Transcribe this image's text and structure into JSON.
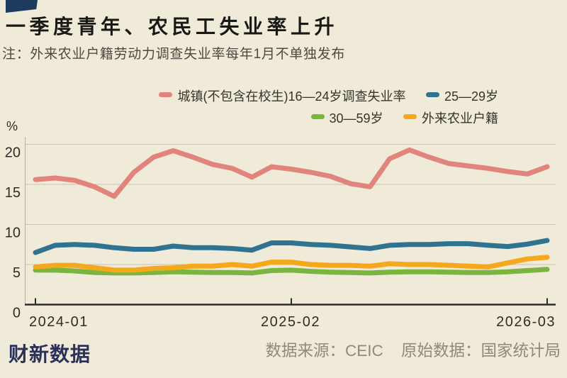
{
  "title": "一季度青年、农民工失业率上升",
  "note": "注：外来农业户籍劳动力调查失业率每年1月不单独发布",
  "unit_label": "%",
  "flag_color": "#1e3a5c",
  "colors": {
    "background": "#f0ead9",
    "gridline": "#c9c3b2",
    "axis": "#2e2c26",
    "yaxis_line": "#b3ae9f",
    "youth": "#e0847c",
    "age25_29": "#2f7390",
    "age30_59": "#7ab53f",
    "migrant": "#f6a81c"
  },
  "legend": [
    {
      "label": "城镇(不包含在校生)16—24岁调查失业率",
      "color": "#e0847c",
      "row": 1
    },
    {
      "label": "25—29岁",
      "color": "#2f7390",
      "row": 1
    },
    {
      "label": "30—59岁",
      "color": "#7ab53f",
      "row": 2
    },
    {
      "label": "外来农业户籍",
      "color": "#f6a81c",
      "row": 2
    }
  ],
  "footer": {
    "brand": "财新数据",
    "source_label": "数据来源：CEIC",
    "original_label": "原始数据：国家统计局"
  },
  "chart_data": {
    "type": "line",
    "x": [
      "2024-01",
      "2024-02",
      "2024-03",
      "2024-04",
      "2024-05",
      "2024-06",
      "2024-07",
      "2024-08",
      "2024-09",
      "2024-10",
      "2024-11",
      "2024-12",
      "2025-01",
      "2025-02",
      "2025-03",
      "2025-04",
      "2025-05",
      "2025-06",
      "2025-07",
      "2025-08",
      "2025-09",
      "2025-10",
      "2025-11",
      "2025-12",
      "2026-01",
      "2026-02",
      "2026-03"
    ],
    "x_tick_labels": [
      "2024-01",
      "2025-02",
      "2026-03"
    ],
    "x_tick_indices": [
      0,
      13,
      26
    ],
    "yticks": [
      0,
      5,
      10,
      15,
      20
    ],
    "ylim": [
      0,
      21
    ],
    "ylabel": "%",
    "grid": true,
    "legend_position": "top-right",
    "series": [
      {
        "name": "30—59岁",
        "color": "#7ab53f",
        "values": [
          4.3,
          4.3,
          4.2,
          4.0,
          3.95,
          3.95,
          4.0,
          4.1,
          4.05,
          4.0,
          4.0,
          3.95,
          4.25,
          4.3,
          4.15,
          4.05,
          4.0,
          3.95,
          4.05,
          4.1,
          4.1,
          4.05,
          4.0,
          4.0,
          4.1,
          4.25,
          4.4
        ]
      },
      {
        "name": "外来农业户籍",
        "color": "#f6a81c",
        "values": [
          4.7,
          4.9,
          4.9,
          4.6,
          4.3,
          4.3,
          4.5,
          4.6,
          4.8,
          4.8,
          5.0,
          4.8,
          5.3,
          5.3,
          5.0,
          4.9,
          4.9,
          4.8,
          5.1,
          5.0,
          5.0,
          4.9,
          4.8,
          4.7,
          5.2,
          5.7,
          5.9
        ]
      },
      {
        "name": "25—29岁",
        "color": "#2f7390",
        "values": [
          6.5,
          7.4,
          7.5,
          7.4,
          7.1,
          6.9,
          6.9,
          7.3,
          7.1,
          7.1,
          7.0,
          6.8,
          7.7,
          7.7,
          7.5,
          7.4,
          7.2,
          7.0,
          7.4,
          7.5,
          7.5,
          7.6,
          7.6,
          7.4,
          7.25,
          7.55,
          8.0
        ]
      },
      {
        "name": "城镇(不包含在校生)16—24岁调查失业率",
        "color": "#e0847c",
        "values": [
          15.6,
          15.8,
          15.5,
          14.7,
          13.5,
          16.5,
          18.4,
          19.2,
          18.4,
          17.5,
          17.0,
          15.9,
          17.2,
          16.9,
          16.5,
          16.0,
          15.1,
          14.7,
          18.2,
          19.3,
          18.4,
          17.6,
          17.3,
          17.0,
          16.6,
          16.3,
          17.2
        ]
      }
    ]
  }
}
